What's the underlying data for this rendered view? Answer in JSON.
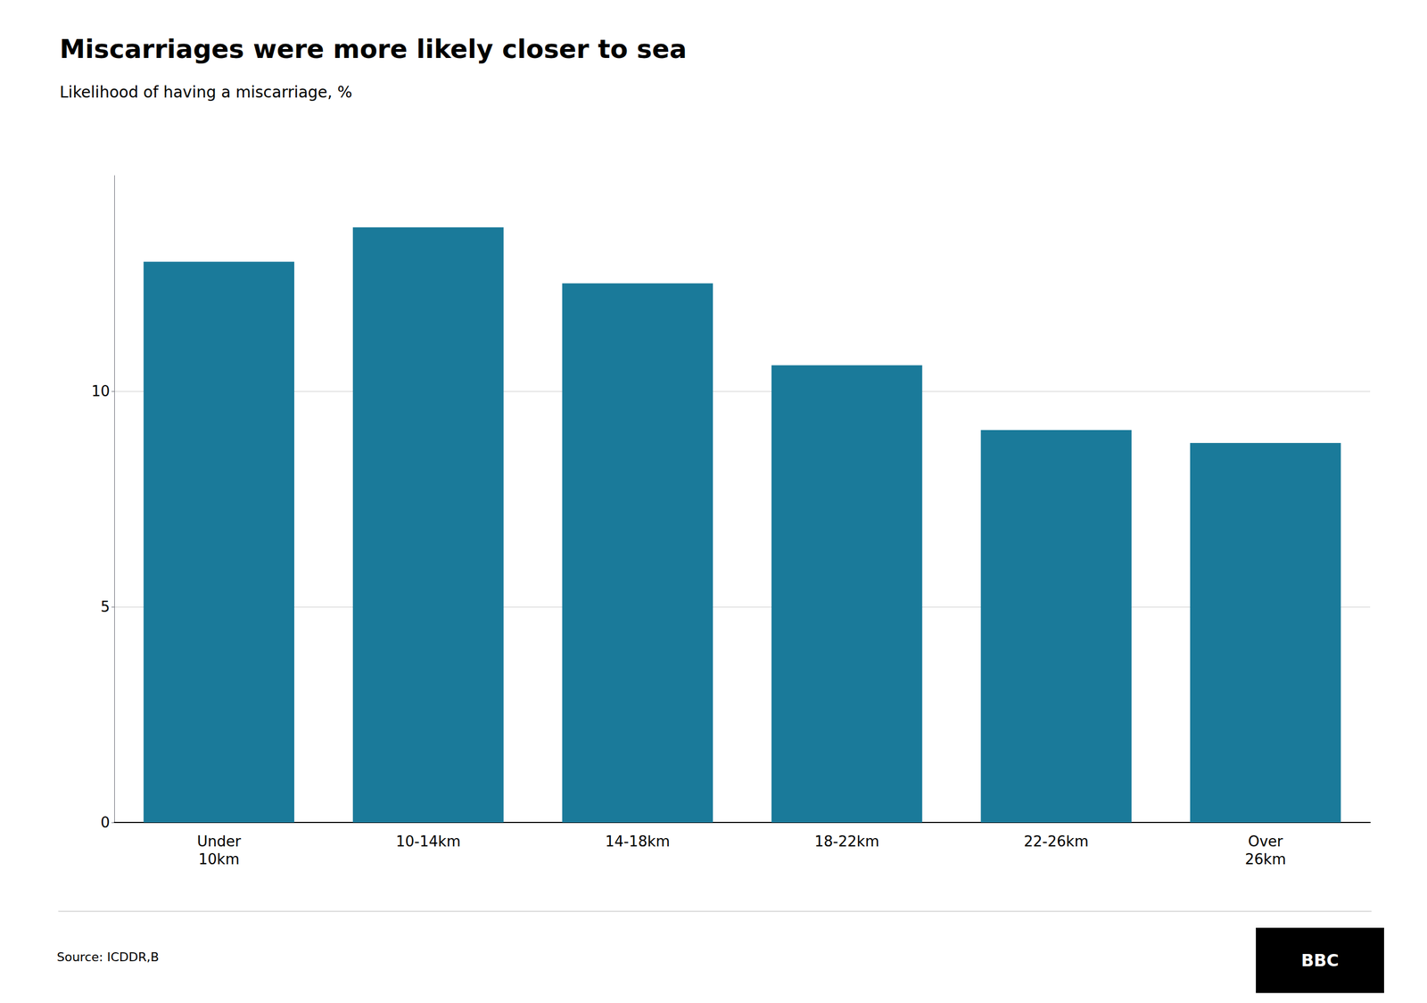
{
  "chart_data": {
    "type": "bar",
    "title": "Miscarriages were more likely closer to sea",
    "subtitle": "Likelihood of having a miscarriage, %",
    "categories": [
      "Under\n10km",
      "10-14km",
      "14-18km",
      "18-22km",
      "22-26km",
      "Over\n26km"
    ],
    "values": [
      13.0,
      13.8,
      12.5,
      10.6,
      9.1,
      8.8
    ],
    "color": "#1a7a9a",
    "ylim": [
      0,
      15
    ],
    "yticks": [
      0,
      5,
      10
    ],
    "grid": true,
    "source": "Source: ICDDR,B",
    "annotations": [
      "BBC"
    ]
  }
}
